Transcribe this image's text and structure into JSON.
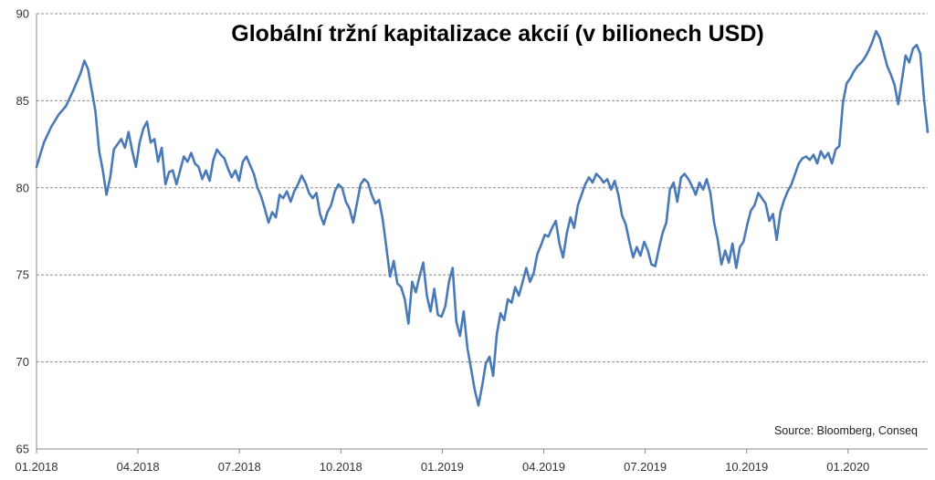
{
  "chart_data": {
    "type": "line",
    "title": "Globální tržní kapitalizace akcií (v bilionech USD)",
    "source": "Source: Bloomberg, Conseq",
    "ylim": [
      65,
      90
    ],
    "yticks": [
      65,
      70,
      75,
      80,
      85,
      90
    ],
    "x_ticks": [
      "01.2018",
      "04.2018",
      "07.2018",
      "10.2018",
      "01.2019",
      "04.2019",
      "07.2019",
      "10.2019",
      "01.2020"
    ],
    "grid": "horizontal dashed",
    "line_color": "#4a7ab5",
    "series": [
      {
        "points": [
          [
            0,
            81.2
          ],
          [
            2,
            82.6
          ],
          [
            4,
            83.5
          ],
          [
            6,
            84.2
          ],
          [
            8,
            84.7
          ],
          [
            10,
            85.6
          ],
          [
            12,
            86.6
          ],
          [
            13,
            87.3
          ],
          [
            14,
            86.8
          ],
          [
            15,
            85.6
          ],
          [
            16,
            84.4
          ],
          [
            17,
            82.1
          ],
          [
            18,
            81.0
          ],
          [
            19,
            79.6
          ],
          [
            20,
            80.6
          ],
          [
            21,
            82.2
          ],
          [
            22,
            82.5
          ],
          [
            23,
            82.8
          ],
          [
            24,
            82.3
          ],
          [
            25,
            83.2
          ],
          [
            26,
            82.1
          ],
          [
            27,
            81.2
          ],
          [
            28,
            82.6
          ],
          [
            29,
            83.4
          ],
          [
            30,
            83.8
          ],
          [
            31,
            82.6
          ],
          [
            32,
            82.8
          ],
          [
            33,
            81.5
          ],
          [
            34,
            82.3
          ],
          [
            35,
            80.2
          ],
          [
            36,
            80.9
          ],
          [
            37,
            81.0
          ],
          [
            38,
            80.2
          ],
          [
            39,
            81.0
          ],
          [
            40,
            81.8
          ],
          [
            41,
            81.5
          ],
          [
            42,
            82.0
          ],
          [
            43,
            81.4
          ],
          [
            44,
            81.2
          ],
          [
            45,
            80.5
          ],
          [
            46,
            81.0
          ],
          [
            47,
            80.4
          ],
          [
            48,
            81.6
          ],
          [
            49,
            82.2
          ],
          [
            50,
            81.9
          ],
          [
            51,
            81.7
          ],
          [
            52,
            81.1
          ],
          [
            53,
            80.6
          ],
          [
            54,
            81.0
          ],
          [
            55,
            80.4
          ],
          [
            56,
            81.5
          ],
          [
            57,
            81.8
          ],
          [
            58,
            81.3
          ],
          [
            59,
            80.8
          ],
          [
            60,
            80.0
          ],
          [
            61,
            79.5
          ],
          [
            62,
            78.8
          ],
          [
            63,
            78.0
          ],
          [
            64,
            78.6
          ],
          [
            65,
            78.3
          ],
          [
            66,
            79.6
          ],
          [
            67,
            79.4
          ],
          [
            68,
            79.8
          ],
          [
            69,
            79.2
          ],
          [
            70,
            79.8
          ],
          [
            71,
            80.2
          ],
          [
            72,
            80.7
          ],
          [
            73,
            80.3
          ],
          [
            74,
            79.7
          ],
          [
            75,
            79.4
          ],
          [
            76,
            79.7
          ],
          [
            77,
            78.5
          ],
          [
            78,
            77.9
          ],
          [
            79,
            78.6
          ],
          [
            80,
            79.0
          ],
          [
            81,
            79.8
          ],
          [
            82,
            80.2
          ],
          [
            83,
            80.0
          ],
          [
            84,
            79.2
          ],
          [
            85,
            78.8
          ],
          [
            86,
            78.0
          ],
          [
            87,
            79.1
          ],
          [
            88,
            80.2
          ],
          [
            89,
            80.5
          ],
          [
            90,
            80.3
          ],
          [
            91,
            79.6
          ],
          [
            92,
            79.1
          ],
          [
            93,
            79.3
          ],
          [
            94,
            78.2
          ],
          [
            95,
            76.6
          ],
          [
            96,
            74.9
          ],
          [
            97,
            75.8
          ],
          [
            98,
            74.5
          ],
          [
            99,
            74.3
          ],
          [
            100,
            73.6
          ],
          [
            101,
            72.2
          ],
          [
            102,
            74.6
          ],
          [
            103,
            74.0
          ],
          [
            104,
            74.9
          ],
          [
            105,
            75.7
          ],
          [
            106,
            73.8
          ],
          [
            107,
            72.9
          ],
          [
            108,
            74.2
          ],
          [
            109,
            72.7
          ],
          [
            110,
            72.6
          ],
          [
            111,
            73.2
          ],
          [
            112,
            74.6
          ],
          [
            113,
            75.4
          ],
          [
            114,
            72.3
          ],
          [
            115,
            71.5
          ],
          [
            116,
            72.9
          ],
          [
            117,
            70.8
          ],
          [
            118,
            69.6
          ],
          [
            119,
            68.4
          ],
          [
            120,
            67.5
          ],
          [
            121,
            68.6
          ],
          [
            122,
            69.9
          ],
          [
            123,
            70.3
          ],
          [
            124,
            69.2
          ],
          [
            125,
            71.6
          ],
          [
            126,
            72.8
          ],
          [
            127,
            72.4
          ],
          [
            128,
            73.6
          ],
          [
            129,
            73.4
          ],
          [
            130,
            74.3
          ],
          [
            131,
            73.8
          ],
          [
            132,
            74.6
          ],
          [
            133,
            75.4
          ],
          [
            134,
            74.6
          ],
          [
            135,
            75.1
          ],
          [
            136,
            76.2
          ],
          [
            137,
            76.7
          ],
          [
            138,
            77.3
          ],
          [
            139,
            77.2
          ],
          [
            140,
            77.7
          ],
          [
            141,
            78.1
          ],
          [
            142,
            76.8
          ],
          [
            143,
            76.0
          ],
          [
            144,
            77.4
          ],
          [
            145,
            78.3
          ],
          [
            146,
            77.7
          ],
          [
            147,
            79.0
          ],
          [
            148,
            79.6
          ],
          [
            149,
            80.2
          ],
          [
            150,
            80.6
          ],
          [
            151,
            80.3
          ],
          [
            152,
            80.8
          ],
          [
            153,
            80.6
          ],
          [
            154,
            80.3
          ],
          [
            155,
            80.5
          ],
          [
            156,
            79.9
          ],
          [
            157,
            80.4
          ],
          [
            158,
            79.6
          ],
          [
            159,
            78.4
          ],
          [
            160,
            77.9
          ],
          [
            161,
            76.9
          ],
          [
            162,
            76.0
          ],
          [
            163,
            76.6
          ],
          [
            164,
            76.1
          ],
          [
            165,
            76.9
          ],
          [
            166,
            76.4
          ],
          [
            167,
            75.6
          ],
          [
            168,
            75.5
          ],
          [
            169,
            76.5
          ],
          [
            170,
            77.4
          ],
          [
            171,
            78.0
          ],
          [
            172,
            79.9
          ],
          [
            173,
            80.3
          ],
          [
            174,
            79.2
          ],
          [
            175,
            80.6
          ],
          [
            176,
            80.8
          ],
          [
            177,
            80.5
          ],
          [
            178,
            80.1
          ],
          [
            179,
            79.6
          ],
          [
            180,
            80.3
          ],
          [
            181,
            79.9
          ],
          [
            182,
            80.5
          ],
          [
            183,
            79.7
          ],
          [
            184,
            78.0
          ],
          [
            185,
            77.0
          ],
          [
            186,
            75.6
          ],
          [
            187,
            76.4
          ],
          [
            188,
            75.7
          ],
          [
            189,
            76.8
          ],
          [
            190,
            75.4
          ],
          [
            191,
            76.6
          ],
          [
            192,
            76.9
          ],
          [
            193,
            77.9
          ],
          [
            194,
            78.7
          ],
          [
            195,
            79.0
          ],
          [
            196,
            79.7
          ],
          [
            197,
            79.4
          ],
          [
            198,
            79.1
          ],
          [
            199,
            78.1
          ],
          [
            200,
            78.5
          ],
          [
            201,
            77.0
          ],
          [
            202,
            78.6
          ],
          [
            203,
            79.3
          ],
          [
            204,
            79.8
          ],
          [
            205,
            80.2
          ],
          [
            206,
            80.8
          ],
          [
            207,
            81.4
          ],
          [
            208,
            81.7
          ],
          [
            209,
            81.8
          ],
          [
            210,
            81.6
          ],
          [
            211,
            81.9
          ],
          [
            212,
            81.4
          ],
          [
            213,
            82.1
          ],
          [
            214,
            81.7
          ],
          [
            215,
            82.0
          ],
          [
            216,
            81.4
          ],
          [
            217,
            82.2
          ],
          [
            218,
            82.4
          ],
          [
            219,
            84.9
          ],
          [
            220,
            86.0
          ],
          [
            221,
            86.3
          ],
          [
            222,
            86.7
          ],
          [
            223,
            87.0
          ],
          [
            224,
            87.2
          ],
          [
            225,
            87.5
          ],
          [
            226,
            87.9
          ],
          [
            227,
            88.4
          ],
          [
            228,
            89.0
          ],
          [
            229,
            88.6
          ],
          [
            230,
            87.8
          ],
          [
            231,
            87.0
          ],
          [
            232,
            86.5
          ],
          [
            233,
            85.9
          ],
          [
            234,
            84.8
          ],
          [
            235,
            86.2
          ],
          [
            236,
            87.6
          ],
          [
            237,
            87.2
          ],
          [
            238,
            88.0
          ],
          [
            239,
            88.2
          ],
          [
            240,
            87.7
          ],
          [
            241,
            85.1
          ],
          [
            242,
            83.2
          ]
        ]
      }
    ]
  }
}
